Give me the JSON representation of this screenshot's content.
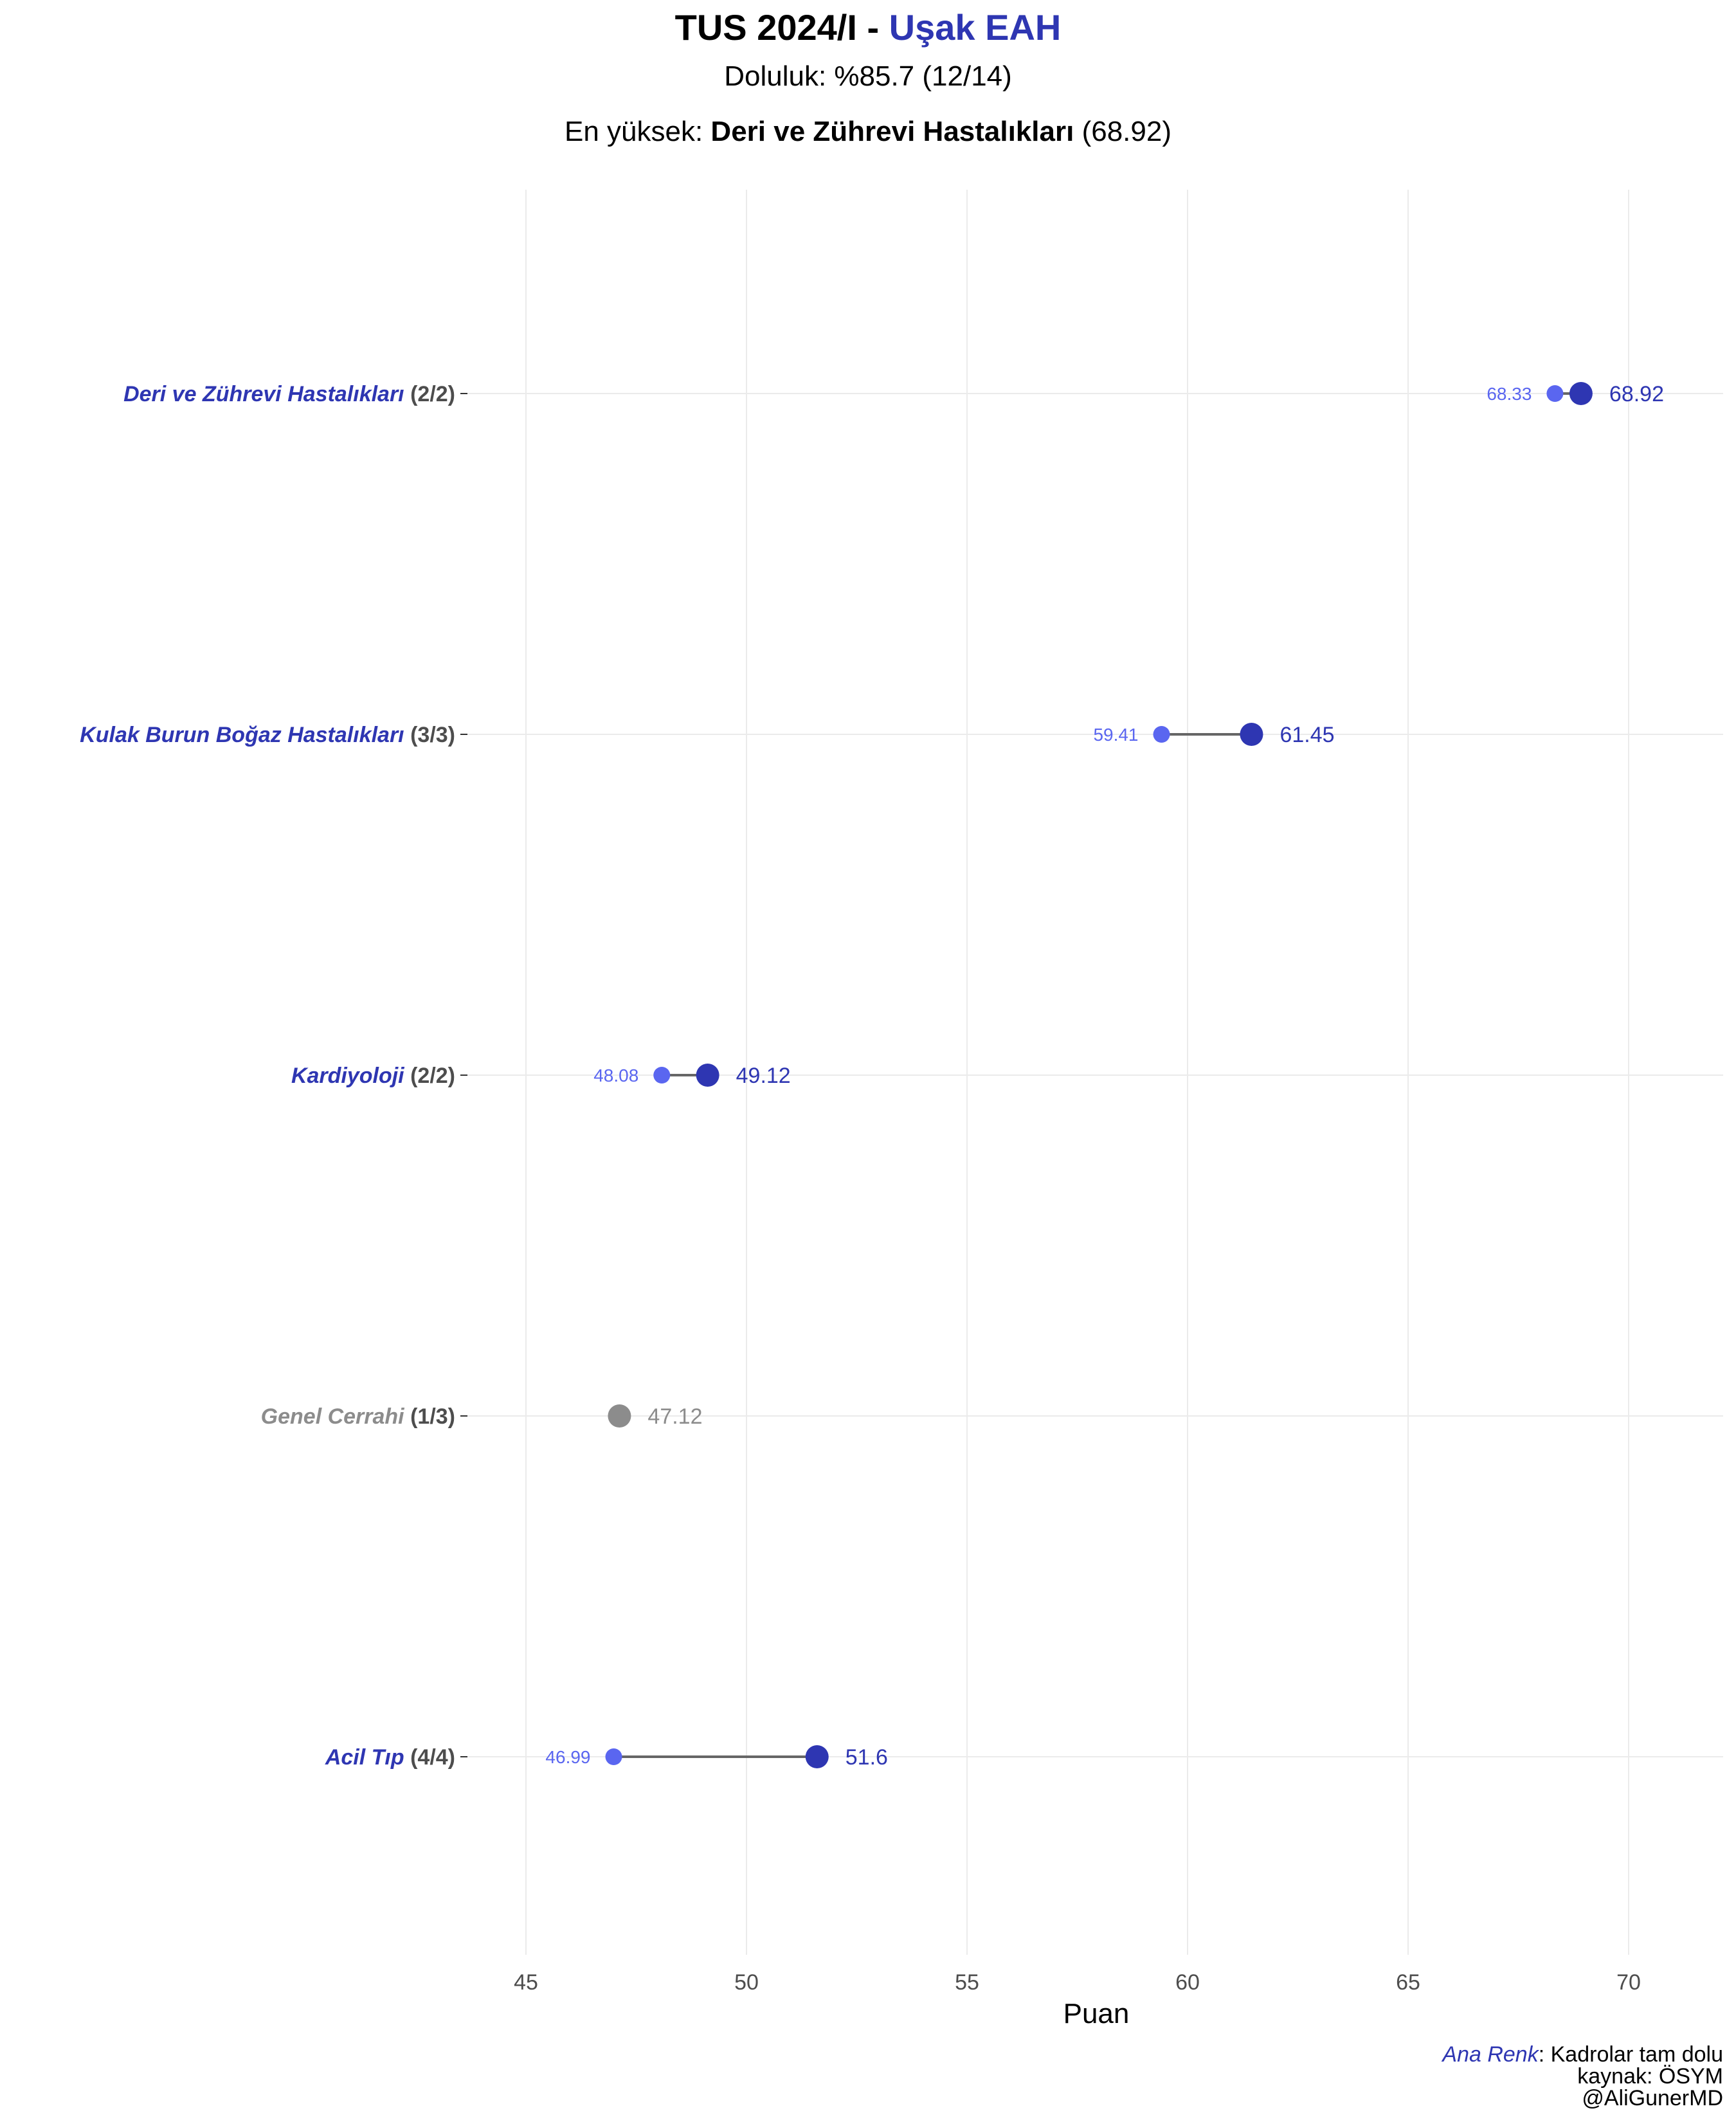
{
  "header": {
    "title_prefix": "TUS 2024/I - ",
    "title_highlight": "Uşak EAH",
    "subtitle_line1": "Doluluk: %85.7 (12/14)",
    "subtitle_line2_prefix": "En yüksek: ",
    "subtitle_line2_bold": "Deri ve Zührevi Hastalıkları",
    "subtitle_line2_suffix": " (68.92)"
  },
  "caption": {
    "legend_colored": "Ana Renk",
    "legend_rest": ": Kadrolar tam dolu",
    "source": "kaynak: ÖSYM",
    "handle": "@AliGunerMD"
  },
  "colors": {
    "full": "#2E36B2",
    "full_min": "#5A66F0",
    "partial": "#8C8C8C",
    "count_text": "#4D4D4D",
    "segment": "#666666",
    "grid": "#EBEBEB"
  },
  "chart_data": {
    "type": "dumbbell",
    "xlabel": "Puan",
    "xlim": [
      42.5,
      72.2
    ],
    "xticks": [
      45,
      50,
      55,
      60,
      65,
      70
    ],
    "grid": true,
    "categories": [
      {
        "name": "Deri ve Zührevi Hastalıkları",
        "count": "(2/2)",
        "min": 68.33,
        "max": 68.92,
        "min_label": "68.33",
        "max_label": "68.92",
        "full": true
      },
      {
        "name": "Kulak Burun Boğaz Hastalıkları",
        "count": "(3/3)",
        "min": 59.41,
        "max": 61.45,
        "min_label": "59.41",
        "max_label": "61.45",
        "full": true
      },
      {
        "name": "Kardiyoloji",
        "count": "(2/2)",
        "min": 48.08,
        "max": 49.12,
        "min_label": "48.08",
        "max_label": "49.12",
        "full": true
      },
      {
        "name": "Genel Cerrahi",
        "count": "(1/3)",
        "min": null,
        "max": 47.12,
        "min_label": null,
        "max_label": "47.12",
        "full": false
      },
      {
        "name": "Acil Tıp",
        "count": "(4/4)",
        "min": 46.99,
        "max": 51.6,
        "min_label": "46.99",
        "max_label": "51.6",
        "full": true
      }
    ]
  }
}
